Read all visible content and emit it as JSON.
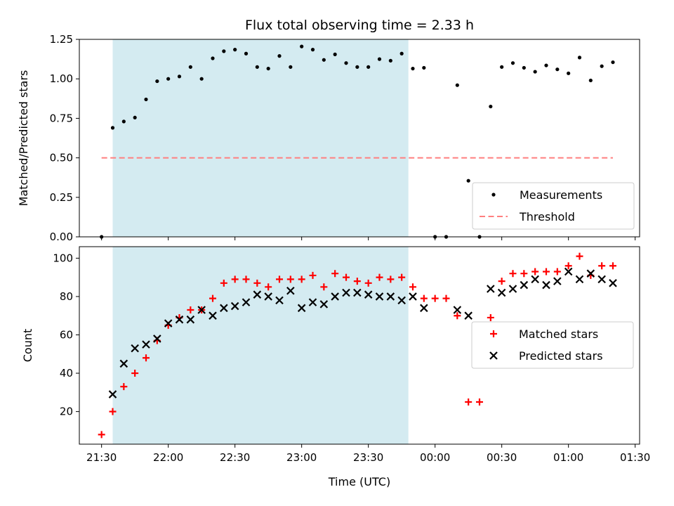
{
  "chart_data": [
    {
      "type": "scatter",
      "title": "Flux total observing time = 2.33 h",
      "xlabel": "",
      "ylabel": "Matched/Predicted stars",
      "ylim": [
        0,
        1.25
      ],
      "xlim": [
        "21:20",
        "01:32"
      ],
      "xticks": [
        "21:30",
        "22:00",
        "22:30",
        "23:00",
        "23:30",
        "00:00",
        "00:30",
        "01:00",
        "01:30"
      ],
      "yticks": [
        "0.00",
        "0.25",
        "0.50",
        "0.75",
        "1.00",
        "1.25"
      ],
      "shaded_interval": {
        "start": "21:35",
        "end": "23:48",
        "color": "#d4ebf1"
      },
      "threshold": {
        "name": "Threshold",
        "value": 0.5,
        "x_start": "21:30",
        "x_end": "01:20",
        "color": "#ff7f7f",
        "style": "dashed"
      },
      "legend": {
        "placement": "lower-right",
        "entries": [
          "Measurements",
          "Threshold"
        ]
      },
      "series": [
        {
          "name": "Measurements",
          "color": "#000000",
          "marker": "dot",
          "points": [
            [
              "21:30",
              0.0
            ],
            [
              "21:35",
              0.69
            ],
            [
              "21:40",
              0.73
            ],
            [
              "21:45",
              0.755
            ],
            [
              "21:50",
              0.87
            ],
            [
              "21:55",
              0.985
            ],
            [
              "22:00",
              1.0
            ],
            [
              "22:05",
              1.015
            ],
            [
              "22:10",
              1.075
            ],
            [
              "22:15",
              1.0
            ],
            [
              "22:20",
              1.13
            ],
            [
              "22:25",
              1.175
            ],
            [
              "22:30",
              1.185
            ],
            [
              "22:35",
              1.16
            ],
            [
              "22:40",
              1.075
            ],
            [
              "22:45",
              1.065
            ],
            [
              "22:50",
              1.145
            ],
            [
              "22:55",
              1.075
            ],
            [
              "23:00",
              1.205
            ],
            [
              "23:05",
              1.185
            ],
            [
              "23:10",
              1.12
            ],
            [
              "23:15",
              1.155
            ],
            [
              "23:20",
              1.1
            ],
            [
              "23:25",
              1.075
            ],
            [
              "23:30",
              1.075
            ],
            [
              "23:35",
              1.125
            ],
            [
              "23:40",
              1.115
            ],
            [
              "23:45",
              1.16
            ],
            [
              "23:50",
              1.065
            ],
            [
              "23:55",
              1.07
            ],
            [
              "00:00",
              0.0
            ],
            [
              "00:05",
              0.0
            ],
            [
              "00:10",
              0.96
            ],
            [
              "00:15",
              0.355
            ],
            [
              "00:20",
              0.0
            ],
            [
              "00:25",
              0.825
            ],
            [
              "00:30",
              1.075
            ],
            [
              "00:35",
              1.1
            ],
            [
              "00:40",
              1.07
            ],
            [
              "00:45",
              1.045
            ],
            [
              "00:50",
              1.085
            ],
            [
              "00:55",
              1.06
            ],
            [
              "01:00",
              1.035
            ],
            [
              "01:05",
              1.135
            ],
            [
              "01:10",
              0.99
            ],
            [
              "01:15",
              1.08
            ],
            [
              "01:20",
              1.105
            ]
          ]
        }
      ]
    },
    {
      "type": "scatter",
      "title": "",
      "xlabel": "Time (UTC)",
      "ylabel": "Count",
      "ylim": [
        3,
        106
      ],
      "xlim": [
        "21:20",
        "01:32"
      ],
      "xticks": [
        "21:30",
        "22:00",
        "22:30",
        "23:00",
        "23:30",
        "00:00",
        "00:30",
        "01:00",
        "01:30"
      ],
      "yticks": [
        "20",
        "40",
        "60",
        "80",
        "100"
      ],
      "shaded_interval": {
        "start": "21:35",
        "end": "23:48",
        "color": "#d4ebf1"
      },
      "legend": {
        "placement": "center-right",
        "entries": [
          "Matched stars",
          "Predicted stars"
        ]
      },
      "series": [
        {
          "name": "Matched stars",
          "color": "#ff0000",
          "marker": "plus",
          "points": [
            [
              "21:30",
              8
            ],
            [
              "21:35",
              20
            ],
            [
              "21:40",
              33
            ],
            [
              "21:45",
              40
            ],
            [
              "21:50",
              48
            ],
            [
              "21:55",
              57
            ],
            [
              "22:00",
              65
            ],
            [
              "22:05",
              69
            ],
            [
              "22:10",
              73
            ],
            [
              "22:15",
              73
            ],
            [
              "22:20",
              79
            ],
            [
              "22:25",
              87
            ],
            [
              "22:30",
              89
            ],
            [
              "22:35",
              89
            ],
            [
              "22:40",
              87
            ],
            [
              "22:45",
              85
            ],
            [
              "22:50",
              89
            ],
            [
              "22:55",
              89
            ],
            [
              "23:00",
              89
            ],
            [
              "23:05",
              91
            ],
            [
              "23:10",
              85
            ],
            [
              "23:15",
              92
            ],
            [
              "23:20",
              90
            ],
            [
              "23:25",
              88
            ],
            [
              "23:30",
              87
            ],
            [
              "23:35",
              90
            ],
            [
              "23:40",
              89
            ],
            [
              "23:45",
              90
            ],
            [
              "23:50",
              85
            ],
            [
              "23:55",
              79
            ],
            [
              "00:00",
              79
            ],
            [
              "00:05",
              79
            ],
            [
              "00:10",
              70
            ],
            [
              "00:15",
              25
            ],
            [
              "00:20",
              25
            ],
            [
              "00:25",
              69
            ],
            [
              "00:30",
              88
            ],
            [
              "00:35",
              92
            ],
            [
              "00:40",
              92
            ],
            [
              "00:45",
              93
            ],
            [
              "00:50",
              93
            ],
            [
              "00:55",
              93
            ],
            [
              "01:00",
              96
            ],
            [
              "01:05",
              101
            ],
            [
              "01:10",
              91
            ],
            [
              "01:15",
              96
            ],
            [
              "01:20",
              96
            ]
          ]
        },
        {
          "name": "Predicted stars",
          "color": "#000000",
          "marker": "x",
          "points": [
            [
              "21:35",
              29
            ],
            [
              "21:40",
              45
            ],
            [
              "21:45",
              53
            ],
            [
              "21:50",
              55
            ],
            [
              "21:55",
              58
            ],
            [
              "22:00",
              66
            ],
            [
              "22:05",
              68
            ],
            [
              "22:10",
              68
            ],
            [
              "22:15",
              73
            ],
            [
              "22:20",
              70
            ],
            [
              "22:25",
              74
            ],
            [
              "22:30",
              75
            ],
            [
              "22:35",
              77
            ],
            [
              "22:40",
              81
            ],
            [
              "22:45",
              80
            ],
            [
              "22:50",
              78
            ],
            [
              "22:55",
              83
            ],
            [
              "23:00",
              74
            ],
            [
              "23:05",
              77
            ],
            [
              "23:10",
              76
            ],
            [
              "23:15",
              80
            ],
            [
              "23:20",
              82
            ],
            [
              "23:25",
              82
            ],
            [
              "23:30",
              81
            ],
            [
              "23:35",
              80
            ],
            [
              "23:40",
              80
            ],
            [
              "23:45",
              78
            ],
            [
              "23:50",
              80
            ],
            [
              "23:55",
              74
            ],
            [
              "00:10",
              73
            ],
            [
              "00:15",
              70
            ],
            [
              "00:25",
              84
            ],
            [
              "00:30",
              82
            ],
            [
              "00:35",
              84
            ],
            [
              "00:40",
              86
            ],
            [
              "00:45",
              89
            ],
            [
              "00:50",
              86
            ],
            [
              "00:55",
              88
            ],
            [
              "01:00",
              93
            ],
            [
              "01:05",
              89
            ],
            [
              "01:10",
              92
            ],
            [
              "01:15",
              89
            ],
            [
              "01:20",
              87
            ]
          ]
        }
      ]
    }
  ]
}
